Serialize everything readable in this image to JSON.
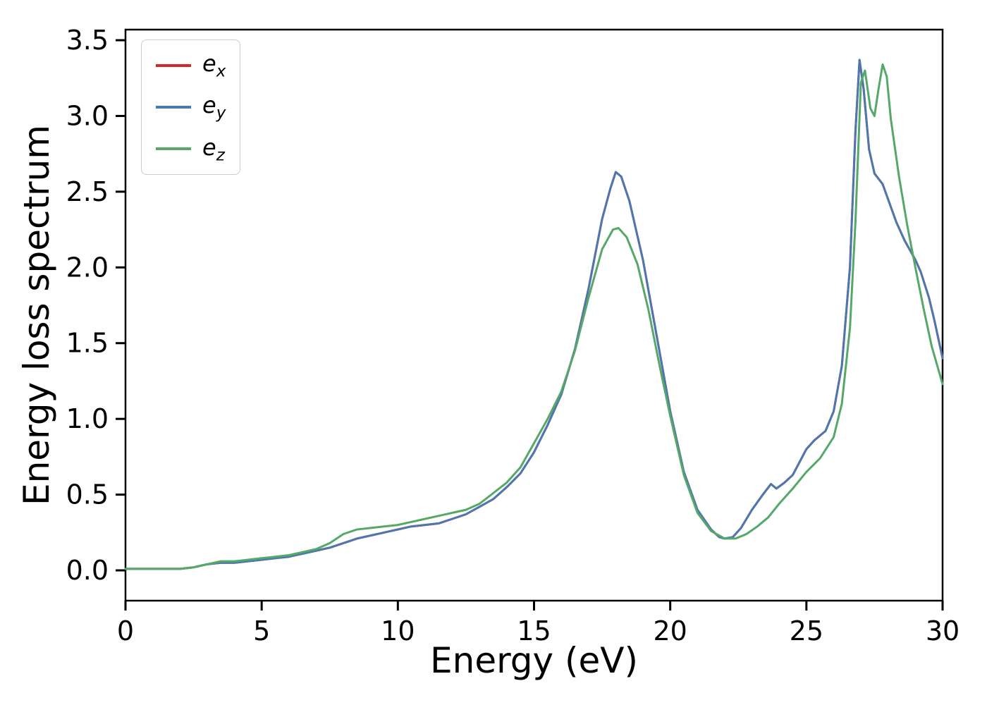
{
  "figure": {
    "background": "#ffffff"
  },
  "chart_data": {
    "type": "line",
    "title": "",
    "xlabel": "Energy (eV)",
    "ylabel": "Energy loss spectrum",
    "xlim": [
      0,
      30
    ],
    "ylim": [
      -0.2,
      3.57
    ],
    "xticks": [
      0,
      5,
      10,
      15,
      20,
      25,
      30
    ],
    "yticks": [
      0.0,
      0.5,
      1.0,
      1.5,
      2.0,
      2.5,
      3.0,
      3.5
    ],
    "grid": false,
    "legend_position": "upper-left",
    "axis_color": "#000000",
    "series": [
      {
        "name": "e_x",
        "color": "#d62728",
        "note": "hidden beneath e_y (identical curve)",
        "x": [
          0,
          0.5,
          1,
          1.5,
          2,
          2.5,
          3,
          3.5,
          4,
          4.5,
          5,
          5.5,
          6,
          6.5,
          7,
          7.5,
          8,
          8.5,
          9,
          9.5,
          10,
          10.5,
          11,
          11.5,
          12,
          12.5,
          13,
          13.5,
          14,
          14.5,
          15,
          15.5,
          16,
          16.5,
          17,
          17.5,
          17.8,
          18,
          18.2,
          18.5,
          19,
          19.5,
          20,
          20.5,
          21,
          21.5,
          21.8,
          22,
          22.3,
          22.6,
          23,
          23.4,
          23.7,
          23.9,
          24.2,
          24.5,
          25,
          25.3,
          25.7,
          26,
          26.3,
          26.6,
          26.8,
          26.95,
          27.1,
          27.3,
          27.5,
          27.8,
          28,
          28.3,
          28.6,
          29,
          29.2,
          29.5,
          29.7,
          30
        ],
        "y": [
          0.01,
          0.01,
          0.01,
          0.01,
          0.01,
          0.02,
          0.04,
          0.05,
          0.05,
          0.06,
          0.07,
          0.08,
          0.09,
          0.11,
          0.13,
          0.15,
          0.18,
          0.21,
          0.23,
          0.25,
          0.27,
          0.29,
          0.3,
          0.31,
          0.34,
          0.37,
          0.42,
          0.47,
          0.55,
          0.64,
          0.78,
          0.96,
          1.16,
          1.46,
          1.86,
          2.32,
          2.52,
          2.63,
          2.6,
          2.44,
          2.05,
          1.55,
          1.05,
          0.65,
          0.4,
          0.27,
          0.22,
          0.21,
          0.22,
          0.28,
          0.4,
          0.5,
          0.57,
          0.54,
          0.58,
          0.63,
          0.8,
          0.86,
          0.92,
          1.05,
          1.35,
          2.0,
          2.9,
          3.37,
          3.18,
          2.78,
          2.62,
          2.55,
          2.45,
          2.3,
          2.18,
          2.05,
          1.97,
          1.8,
          1.65,
          1.4
        ]
      },
      {
        "name": "e_y",
        "color": "#4c78b0",
        "x": [
          0,
          0.5,
          1,
          1.5,
          2,
          2.5,
          3,
          3.5,
          4,
          4.5,
          5,
          5.5,
          6,
          6.5,
          7,
          7.5,
          8,
          8.5,
          9,
          9.5,
          10,
          10.5,
          11,
          11.5,
          12,
          12.5,
          13,
          13.5,
          14,
          14.5,
          15,
          15.5,
          16,
          16.5,
          17,
          17.5,
          17.8,
          18,
          18.2,
          18.5,
          19,
          19.5,
          20,
          20.5,
          21,
          21.5,
          21.8,
          22,
          22.3,
          22.6,
          23,
          23.4,
          23.7,
          23.9,
          24.2,
          24.5,
          25,
          25.3,
          25.7,
          26,
          26.3,
          26.6,
          26.8,
          26.95,
          27.1,
          27.3,
          27.5,
          27.8,
          28,
          28.3,
          28.6,
          29,
          29.2,
          29.5,
          29.7,
          30
        ],
        "y": [
          0.01,
          0.01,
          0.01,
          0.01,
          0.01,
          0.02,
          0.04,
          0.05,
          0.05,
          0.06,
          0.07,
          0.08,
          0.09,
          0.11,
          0.13,
          0.15,
          0.18,
          0.21,
          0.23,
          0.25,
          0.27,
          0.29,
          0.3,
          0.31,
          0.34,
          0.37,
          0.42,
          0.47,
          0.55,
          0.64,
          0.78,
          0.96,
          1.16,
          1.46,
          1.86,
          2.32,
          2.52,
          2.63,
          2.6,
          2.44,
          2.05,
          1.55,
          1.05,
          0.65,
          0.4,
          0.27,
          0.22,
          0.21,
          0.22,
          0.28,
          0.4,
          0.5,
          0.57,
          0.54,
          0.58,
          0.63,
          0.8,
          0.86,
          0.92,
          1.05,
          1.35,
          2.0,
          2.9,
          3.37,
          3.18,
          2.78,
          2.62,
          2.55,
          2.45,
          2.3,
          2.18,
          2.05,
          1.97,
          1.8,
          1.65,
          1.4
        ]
      },
      {
        "name": "e_z",
        "color": "#55a868",
        "x": [
          0,
          0.5,
          1,
          1.5,
          2,
          2.5,
          3,
          3.5,
          4,
          4.5,
          5,
          5.5,
          6,
          6.5,
          7,
          7.5,
          8,
          8.5,
          9,
          9.5,
          10,
          10.5,
          11,
          11.5,
          12,
          12.5,
          13,
          13.5,
          14,
          14.5,
          15,
          15.5,
          16,
          16.5,
          17,
          17.5,
          17.9,
          18.1,
          18.4,
          18.8,
          19.2,
          19.6,
          20,
          20.5,
          21,
          21.5,
          22,
          22.4,
          22.8,
          23.2,
          23.6,
          24,
          24.5,
          25,
          25.5,
          26,
          26.3,
          26.6,
          26.8,
          27,
          27.15,
          27.35,
          27.5,
          27.65,
          27.8,
          27.95,
          28.1,
          28.4,
          28.7,
          29,
          29.3,
          29.6,
          30
        ],
        "y": [
          0.01,
          0.01,
          0.01,
          0.01,
          0.01,
          0.02,
          0.04,
          0.06,
          0.06,
          0.07,
          0.08,
          0.09,
          0.1,
          0.12,
          0.14,
          0.18,
          0.24,
          0.27,
          0.28,
          0.29,
          0.3,
          0.32,
          0.34,
          0.36,
          0.38,
          0.4,
          0.44,
          0.51,
          0.58,
          0.68,
          0.84,
          1.0,
          1.18,
          1.45,
          1.8,
          2.12,
          2.25,
          2.26,
          2.2,
          2.02,
          1.72,
          1.36,
          1.02,
          0.63,
          0.38,
          0.26,
          0.21,
          0.21,
          0.24,
          0.29,
          0.35,
          0.44,
          0.54,
          0.65,
          0.74,
          0.88,
          1.1,
          1.6,
          2.3,
          3.22,
          3.3,
          3.05,
          3.0,
          3.18,
          3.34,
          3.26,
          2.98,
          2.6,
          2.28,
          2.0,
          1.73,
          1.48,
          1.23
        ]
      }
    ]
  }
}
